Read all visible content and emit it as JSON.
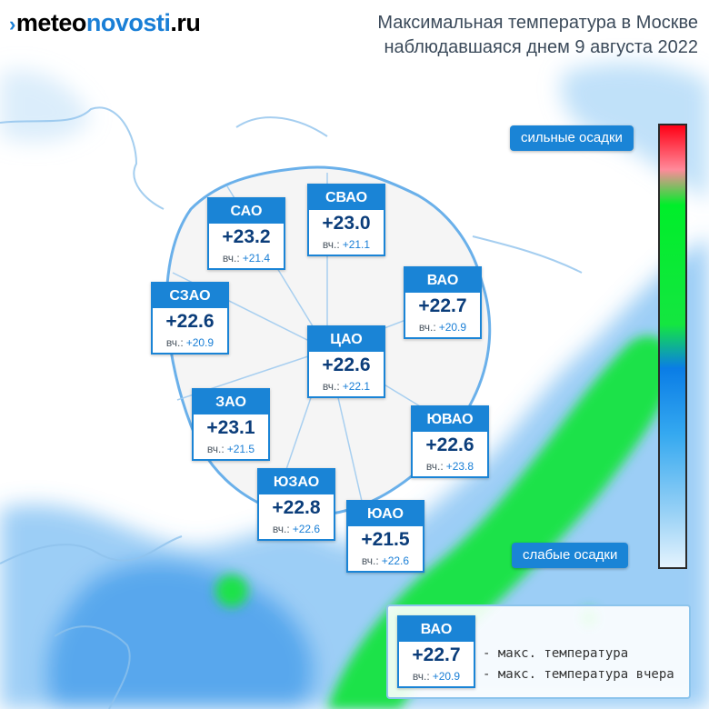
{
  "header": {
    "logo_part1": "meteo",
    "logo_part2": "novosti",
    "logo_part3": ".ru",
    "title_line1": "Максимальная температура в Москве",
    "title_line2": "наблюдавшаяся днем 9 августа 2022"
  },
  "colors": {
    "accent": "#1a84d6",
    "heavy_precip": "#ff0015",
    "moderate_precip": "#14e640",
    "light_precip": "#9ad2f6"
  },
  "yesterday_label": "вч.:",
  "districts": [
    {
      "id": "sao",
      "name": "САО",
      "temp": "+23.2",
      "yesterday": "+21.4"
    },
    {
      "id": "svao",
      "name": "СВАО",
      "temp": "+23.0",
      "yesterday": "+21.1"
    },
    {
      "id": "szao",
      "name": "СЗАО",
      "temp": "+22.6",
      "yesterday": "+20.9"
    },
    {
      "id": "vao",
      "name": "ВАО",
      "temp": "+22.7",
      "yesterday": "+20.9"
    },
    {
      "id": "cao",
      "name": "ЦАО",
      "temp": "+22.6",
      "yesterday": "+22.1"
    },
    {
      "id": "zao",
      "name": "ЗАО",
      "temp": "+23.1",
      "yesterday": "+21.5"
    },
    {
      "id": "yuvao",
      "name": "ЮВАО",
      "temp": "+22.6",
      "yesterday": "+23.8"
    },
    {
      "id": "yuzao",
      "name": "ЮЗАО",
      "temp": "+22.8",
      "yesterday": "+22.6"
    },
    {
      "id": "yuao",
      "name": "ЮАО",
      "temp": "+21.5",
      "yesterday": "+22.6"
    }
  ],
  "scale": {
    "top_label": "сильные осадки",
    "bottom_label": "слабые осадки"
  },
  "legend": {
    "sample_name": "ВАО",
    "sample_temp": "+22.7",
    "sample_yesterday": "+20.9",
    "max_temp_desc": "- макс. температура",
    "max_temp_yesterday_desc": "- макс. температура вчера"
  }
}
